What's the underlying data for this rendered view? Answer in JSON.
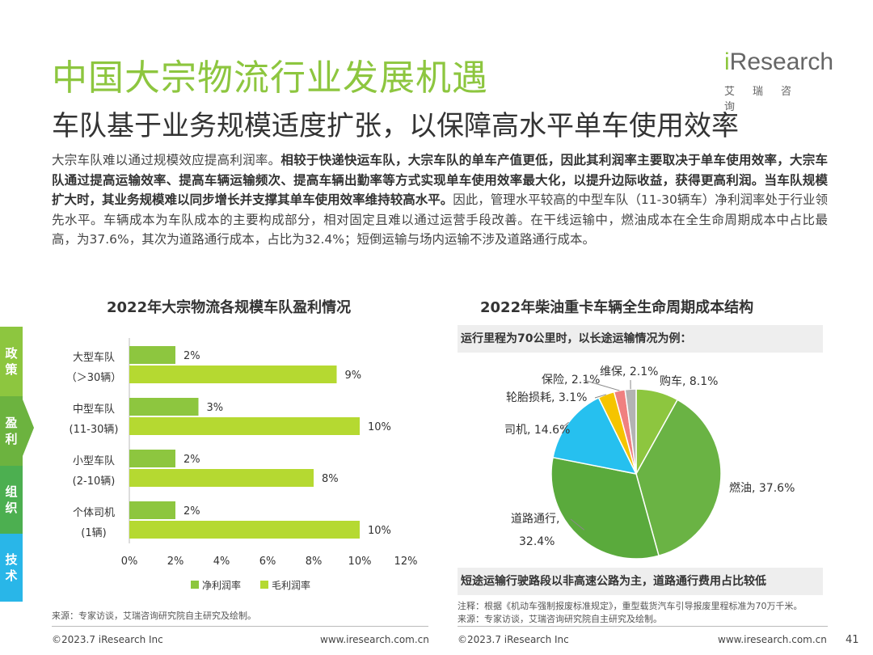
{
  "page": {
    "title": "中国大宗物流行业发展机遇",
    "subtitle": "车队基于业务规模适度扩张，以保障高水平单车使用效率",
    "logo_text": "iResearch",
    "logo_sub": "艾瑞咨询",
    "body_segments": [
      {
        "text": "大宗车队难以通过规模效应提高利润率。",
        "bold": false
      },
      {
        "text": "相较于快递快运车队，大宗车队的单车产值更低，因此其利润率主要取决于单车使用效率，大宗车队通过提高运输效率、提高车辆运输频次、提高车辆出勤率等方式实现单车使用效率最大化，以提升边际收益，获得更高利润。当车队规模扩大时，其业务规模难以同步增长并支撑其单车使用效率维持较高水平。",
        "bold": true
      },
      {
        "text": "因此，管理水平较高的中型车队（11-30辆车）净利润率处于行业领先水平。车辆成本为车队成本的主要构成部分，相对固定且难以通过运营手段改善。在干线运输中，燃油成本在全生命周期成本中占比最高，为37.6%，其次为道路通行成本，占比为32.4%；短倒运输与场内运输不涉及道路通行成本。",
        "bold": false
      }
    ],
    "sidebar": [
      {
        "label": "政策",
        "color": "#8dc63f"
      },
      {
        "label": "盈利",
        "color": "#6cb33f"
      },
      {
        "label": "组织",
        "color": "#4caf50"
      },
      {
        "label": "技术",
        "color": "#29b6e8"
      }
    ],
    "left_source": "来源：专家访谈，艾瑞咨询研究院自主研究及绘制。",
    "right_annot_top": "运行里程为70公里时，以长途运输情况为例：",
    "right_annot_bottom": "短途运输行驶路段以非高速公路为主，道路通行费用占比较低",
    "right_note": "注释：根据《机动车强制报废标准规定》，重型载货汽车引导报废里程标准为70万千米。",
    "right_source": "来源：专家访谈，艾瑞咨询研究院自主研究及绘制。",
    "footer_left_1": "©2023.7 iResearch Inc",
    "footer_mid_1": "www.iresearch.com.cn",
    "footer_left_2": "©2023.7 iResearch Inc",
    "footer_mid_2": "www.iresearch.com.cn",
    "page_number": "41"
  },
  "chart_data": [
    {
      "type": "bar",
      "orientation": "horizontal",
      "title": "2022年大宗物流各规模车队盈利情况",
      "categories": [
        {
          "line1": "大型车队",
          "line2": "（＞30辆）"
        },
        {
          "line1": "中型车队",
          "line2": "(11-30辆)"
        },
        {
          "line1": "小型车队",
          "line2": "(2-10辆)"
        },
        {
          "line1": "个体司机",
          "line2": "(1辆)"
        }
      ],
      "series": [
        {
          "name": "净利润率",
          "color": "#8dc63f",
          "values": [
            2,
            3,
            2,
            2
          ],
          "labels": [
            "2%",
            "3%",
            "2%",
            "2%"
          ]
        },
        {
          "name": "毛利润率",
          "color": "#b5d931",
          "values": [
            9,
            10,
            8,
            10
          ],
          "labels": [
            "9%",
            "10%",
            "8%",
            "10%"
          ]
        }
      ],
      "xlim": [
        0,
        12
      ],
      "x_ticks": [
        "0%",
        "2%",
        "4%",
        "6%",
        "8%",
        "10%",
        "12%"
      ],
      "legend": "bottom"
    },
    {
      "type": "pie",
      "title": "2022年柴油重卡车辆全生命周期成本结构",
      "slices": [
        {
          "label": "购车, 8.1%",
          "value": 8.1,
          "color": "#8dc63f"
        },
        {
          "label": "燃油, 37.6%",
          "value": 37.6,
          "color": "#6ab344"
        },
        {
          "label": "道路通行,",
          "label2": "32.4%",
          "value": 32.4,
          "color": "#5aaa3c"
        },
        {
          "label": "司机, 14.6%",
          "value": 14.6,
          "color": "#26c0ef"
        },
        {
          "label": "轮胎损耗, 3.1%",
          "value": 3.1,
          "color": "#f5c400"
        },
        {
          "label": "保险, 2.1%",
          "value": 2.1,
          "color": "#f08080"
        },
        {
          "label": "维保, 2.1%",
          "value": 2.1,
          "color": "#b3b3b3"
        }
      ]
    }
  ]
}
